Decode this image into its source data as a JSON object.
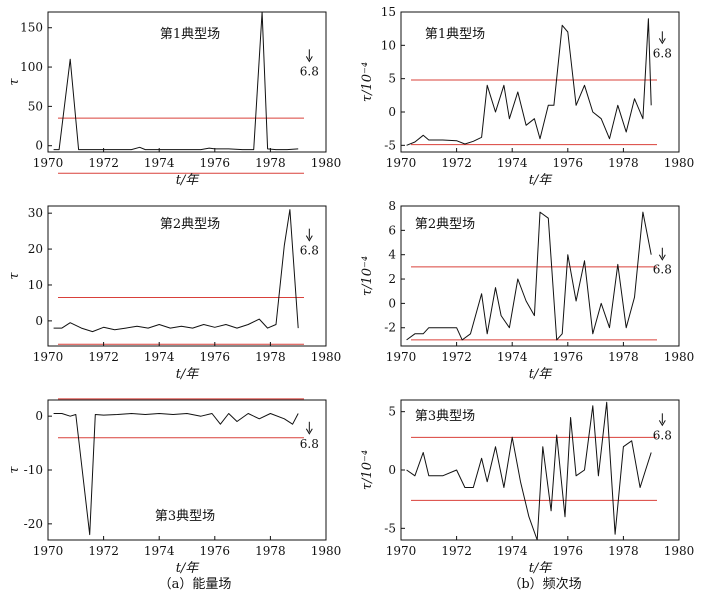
{
  "captions": {
    "a": "（a）能量场",
    "b": "（b）频次场"
  },
  "colors": {
    "series": "#111111",
    "threshold": "#d9403a"
  },
  "chart_data": [
    {
      "type": "line",
      "title": "第1典型场",
      "xlabel": "t/年",
      "ylabel": "τ",
      "xlim": [
        1970,
        1980
      ],
      "ylim": [
        -8,
        170
      ],
      "xticks": [
        1970,
        1972,
        1974,
        1976,
        1978,
        1980
      ],
      "yticks": [
        0,
        50,
        100,
        150
      ],
      "thresholds": [
        35,
        -35
      ],
      "annotation": {
        "text": "6.8",
        "x": 1979.4,
        "y": 92
      },
      "x": [
        1970.2,
        1970.4,
        1970.8,
        1971.1,
        1971.5,
        1972.0,
        1972.5,
        1973.0,
        1973.3,
        1973.5,
        1974.0,
        1974.5,
        1975.0,
        1975.5,
        1975.8,
        1976.0,
        1976.5,
        1977.0,
        1977.4,
        1977.7,
        1977.9,
        1978.2,
        1978.6,
        1979.0
      ],
      "values": [
        -5,
        -5,
        110,
        -5,
        -5,
        -5,
        -5,
        -5,
        -2,
        -5,
        -5,
        -5,
        -5,
        -5,
        -3,
        -4,
        -4,
        -5,
        -5,
        170,
        -4,
        -5,
        -5,
        -4
      ]
    },
    {
      "type": "line",
      "title": "第1典型场",
      "xlabel": "t/年",
      "ylabel": "τ/10⁻⁴",
      "xlim": [
        1970,
        1980
      ],
      "ylim": [
        -6,
        15
      ],
      "xticks": [
        1970,
        1972,
        1974,
        1976,
        1978,
        1980
      ],
      "yticks": [
        -5,
        0,
        5,
        10,
        15
      ],
      "thresholds": [
        4.8,
        -4.9
      ],
      "annotation": {
        "text": "6.8",
        "x": 1979.4,
        "y": 8.5
      },
      "x": [
        1970.2,
        1970.5,
        1970.8,
        1971.0,
        1971.5,
        1972.0,
        1972.3,
        1972.6,
        1972.9,
        1973.1,
        1973.4,
        1973.7,
        1973.9,
        1974.2,
        1974.5,
        1974.8,
        1975.0,
        1975.3,
        1975.5,
        1975.8,
        1976.0,
        1976.3,
        1976.6,
        1976.9,
        1977.2,
        1977.5,
        1977.8,
        1978.1,
        1978.4,
        1978.7,
        1978.9,
        1979.0
      ],
      "values": [
        -5,
        -4.5,
        -3.5,
        -4.2,
        -4.2,
        -4.3,
        -4.8,
        -4.4,
        -3.8,
        4,
        0,
        4,
        -1,
        3,
        -2,
        -1,
        -4,
        1,
        1,
        13,
        12,
        1,
        4,
        0,
        -1,
        -4,
        1,
        -3,
        2,
        -1,
        14,
        1
      ]
    },
    {
      "type": "line",
      "title": "第2典型场",
      "xlabel": "t/年",
      "ylabel": "τ",
      "xlim": [
        1970,
        1980
      ],
      "ylim": [
        -7,
        32
      ],
      "xticks": [
        1970,
        1972,
        1974,
        1976,
        1978,
        1980
      ],
      "yticks": [
        0,
        10,
        20,
        30
      ],
      "thresholds": [
        6.5,
        -6.5
      ],
      "annotation": {
        "text": "6.8",
        "x": 1979.4,
        "y": 19
      },
      "x": [
        1970.2,
        1970.5,
        1970.8,
        1971.2,
        1971.6,
        1972.0,
        1972.4,
        1972.8,
        1973.2,
        1973.6,
        1974.0,
        1974.4,
        1974.8,
        1975.2,
        1975.6,
        1976.0,
        1976.4,
        1976.8,
        1977.2,
        1977.6,
        1977.9,
        1978.2,
        1978.5,
        1978.7,
        1979.0
      ],
      "values": [
        -2,
        -2,
        -0.5,
        -2,
        -3,
        -1.8,
        -2.5,
        -2,
        -1.5,
        -2,
        -1,
        -2,
        -1.5,
        -2,
        -1,
        -1.8,
        -1,
        -2,
        -1,
        0.5,
        -2,
        -1,
        21,
        31,
        -2
      ]
    },
    {
      "type": "line",
      "title": "第2典型场",
      "xlabel": "t/年",
      "ylabel": "τ/10⁻⁴",
      "xlim": [
        1970,
        1980
      ],
      "ylim": [
        -3.5,
        8
      ],
      "xticks": [
        1970,
        1972,
        1974,
        1976,
        1978,
        1980
      ],
      "yticks": [
        -2,
        0,
        2,
        4,
        6,
        8
      ],
      "thresholds": [
        3,
        -3
      ],
      "annotation": {
        "text": "6.8",
        "x": 1979.4,
        "y": 2.6
      },
      "x": [
        1970.2,
        1970.5,
        1970.8,
        1971.0,
        1971.3,
        1971.6,
        1972.0,
        1972.2,
        1972.5,
        1972.9,
        1973.1,
        1973.4,
        1973.6,
        1973.9,
        1974.2,
        1974.5,
        1974.8,
        1975.0,
        1975.3,
        1975.6,
        1975.8,
        1976.0,
        1976.3,
        1976.6,
        1976.9,
        1977.2,
        1977.5,
        1977.8,
        1978.1,
        1978.4,
        1978.7,
        1979.0
      ],
      "values": [
        -3,
        -2.5,
        -2.5,
        -2,
        -2,
        -2,
        -2,
        -3,
        -2.5,
        0.8,
        -2.5,
        1.3,
        -1,
        -2,
        2,
        0.2,
        -1,
        7.5,
        7,
        -3,
        -2.5,
        4,
        0.2,
        3.5,
        -2.5,
        0,
        -2,
        3.2,
        -2,
        0.5,
        7.5,
        4
      ]
    },
    {
      "type": "line",
      "title": "第3典型场",
      "xlabel": "t/年",
      "ylabel": "τ",
      "xlim": [
        1970,
        1980
      ],
      "ylim": [
        -23,
        3
      ],
      "xticks": [
        1970,
        1972,
        1974,
        1976,
        1978,
        1980
      ],
      "yticks": [
        0,
        -10,
        -20
      ],
      "thresholds": [
        3.2,
        -4
      ],
      "annotation": {
        "text": "6.8",
        "x": 1979.4,
        "y": -5.5
      },
      "x": [
        1970.2,
        1970.5,
        1970.8,
        1971.0,
        1971.5,
        1971.7,
        1972.0,
        1972.5,
        1973.0,
        1973.5,
        1974.0,
        1974.5,
        1975.0,
        1975.5,
        1975.9,
        1976.2,
        1976.5,
        1976.8,
        1977.2,
        1977.6,
        1978.0,
        1978.5,
        1978.8,
        1979.0
      ],
      "values": [
        0.5,
        0.5,
        0,
        0.3,
        -22,
        0.3,
        0.2,
        0.3,
        0.5,
        0.3,
        0.5,
        0.3,
        0.5,
        0,
        0.5,
        -1.5,
        0.5,
        -1,
        0.5,
        -0.5,
        0.5,
        -0.5,
        -1.5,
        0.5
      ]
    },
    {
      "type": "line",
      "title": "第3典型场",
      "xlabel": "t/年",
      "ylabel": "τ/10⁻⁴",
      "xlim": [
        1970,
        1980
      ],
      "ylim": [
        -6,
        6
      ],
      "xticks": [
        1970,
        1972,
        1974,
        1976,
        1978,
        1980
      ],
      "yticks": [
        -5,
        0,
        5
      ],
      "thresholds": [
        2.8,
        -2.6
      ],
      "annotation": {
        "text": "6.8",
        "x": 1979.4,
        "y": 2.8
      },
      "x": [
        1970.2,
        1970.5,
        1970.8,
        1971.0,
        1971.5,
        1972.0,
        1972.3,
        1972.6,
        1972.9,
        1973.1,
        1973.4,
        1973.7,
        1974.0,
        1974.3,
        1974.6,
        1974.9,
        1975.1,
        1975.4,
        1975.6,
        1975.9,
        1976.1,
        1976.3,
        1976.6,
        1976.9,
        1977.1,
        1977.4,
        1977.7,
        1978.0,
        1978.3,
        1978.6,
        1978.8,
        1979.0
      ],
      "values": [
        0,
        -0.5,
        1.5,
        -0.5,
        -0.5,
        0,
        -1.5,
        -1.5,
        1,
        -1,
        2,
        -1.5,
        2.8,
        -1,
        -4,
        -6,
        2,
        -3.5,
        3,
        -4,
        4.5,
        -0.5,
        0,
        5.5,
        -0.5,
        5.8,
        -5.5,
        2,
        2.5,
        -1.5,
        0,
        1.5
      ]
    }
  ]
}
